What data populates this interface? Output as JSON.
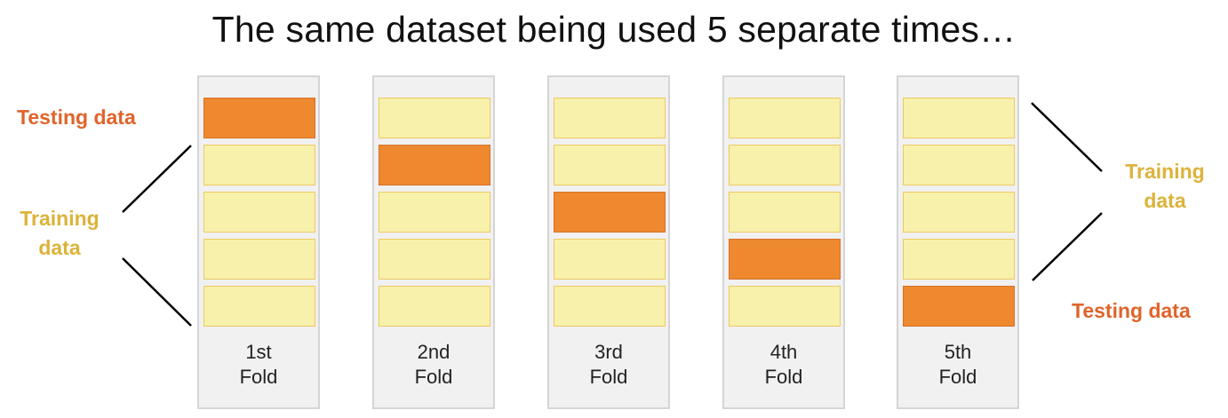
{
  "title": "The same dataset being used 5 separate times…",
  "colors": {
    "testing": "#ee892f",
    "training": "#f7f1ac",
    "testing_text": "#e0642a",
    "training_text": "#dcb33a",
    "panel": "#f1f1f1"
  },
  "left_labels": {
    "testing": "Testing data",
    "training_line1": "Training",
    "training_line2": "data"
  },
  "right_labels": {
    "training_line1": "Training",
    "training_line2": "data",
    "testing": "Testing data"
  },
  "folds": [
    {
      "label_line1": "1st",
      "label_line2": "Fold",
      "testing_block": 1
    },
    {
      "label_line1": "2nd",
      "label_line2": "Fold",
      "testing_block": 2
    },
    {
      "label_line1": "3rd",
      "label_line2": "Fold",
      "testing_block": 3
    },
    {
      "label_line1": "4th",
      "label_line2": "Fold",
      "testing_block": 4
    },
    {
      "label_line1": "5th",
      "label_line2": "Fold",
      "testing_block": 5
    }
  ]
}
